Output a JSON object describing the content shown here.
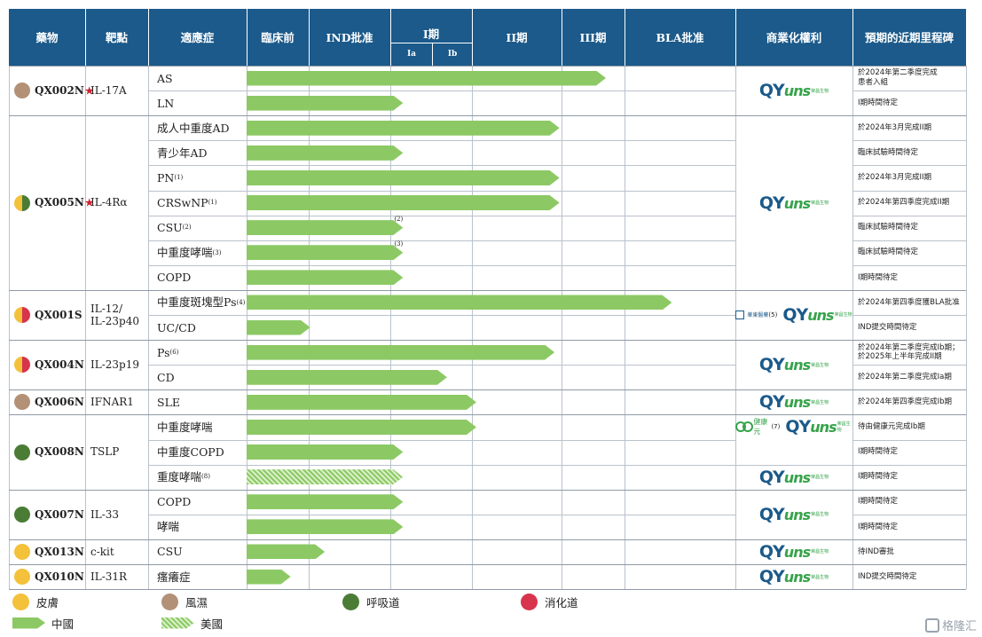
{
  "header": {
    "drug": "藥物",
    "target": "靶點",
    "indication": "適應症",
    "preclinical": "臨床前",
    "ind_approval": "IND批准",
    "phase1": "I期",
    "phase1a": "Ia",
    "phase1b": "Ib",
    "phase2": "II期",
    "phase3": "III期",
    "bla_approval": "BLA批准",
    "commercial_rights": "商業化權利",
    "milestones": "預期的近期里程碑"
  },
  "programs": [
    {
      "drug": "QX002N",
      "star": "★",
      "area": "brown",
      "target": "IL-17A",
      "rows": [
        {
          "indication": "AS",
          "fn": "",
          "stage": 0.735,
          "us": false,
          "milestone": "於2024年第二季度完成\n患者入組"
        },
        {
          "indication": "LN",
          "fn": "",
          "stage": 0.32,
          "us": false,
          "milestone": "I期時間待定"
        }
      ],
      "rights": [
        "qyuns"
      ]
    },
    {
      "drug": "QX005N",
      "star": "★",
      "area": "yg",
      "target": "IL-4Rα",
      "rows": [
        {
          "indication": "成人中重度AD",
          "fn": "",
          "stage": 0.64,
          "us": false,
          "milestone": "於2024年3月完成II期"
        },
        {
          "indication": "青少年AD",
          "fn": "",
          "stage": 0.32,
          "us": false,
          "milestone": "臨床試驗時間待定"
        },
        {
          "indication": "PN",
          "fn": "(1)",
          "stage": 0.64,
          "us": false,
          "milestone": "於2024年3月完成II期"
        },
        {
          "indication": "CRSwNP",
          "fn": "(1)",
          "stage": 0.64,
          "us": false,
          "milestone": "於2024年第四季度完成II期"
        },
        {
          "indication": "CSU",
          "fn": "(2)",
          "stage": 0.32,
          "us": false,
          "arrow_fn": "(2)",
          "milestone": "臨床試驗時間待定"
        },
        {
          "indication": "中重度哮喘",
          "fn": "(3)",
          "stage": 0.32,
          "us": false,
          "arrow_fn": "(3)",
          "milestone": "臨床試驗時間待定"
        },
        {
          "indication": "COPD",
          "fn": "",
          "stage": 0.32,
          "us": false,
          "milestone": "I期時間待定"
        }
      ],
      "rights": [
        "qyuns"
      ]
    },
    {
      "drug": "QX001S",
      "star": "",
      "area": "yr",
      "target": "IL-12/\nIL-23p40",
      "rows": [
        {
          "indication": "中重度斑塊型Ps",
          "fn": "(4)",
          "stage": 0.87,
          "us": false,
          "milestone": "於2024年第四季度獲BLA批准"
        },
        {
          "indication": "UC/CD",
          "fn": "",
          "stage": 0.13,
          "us": false,
          "milestone": "IND提交時間待定"
        }
      ],
      "rights": [
        "partner-hd",
        "qyuns"
      ],
      "partner_fn": "(5)",
      "partner_name": "華東醫藥"
    },
    {
      "drug": "QX004N",
      "star": "",
      "area": "yr",
      "target": "IL-23p19",
      "rows": [
        {
          "indication": "Ps",
          "fn": "(6)",
          "stage": 0.63,
          "us": false,
          "milestone": "於2024年第二季度完成Ib期；\n於2025年上半年完成II期"
        },
        {
          "indication": "CD",
          "fn": "",
          "stage": 0.41,
          "us": false,
          "milestone": "於2024年第二季度完成Ia期"
        }
      ],
      "rights": [
        "qyuns"
      ]
    },
    {
      "drug": "QX006N",
      "star": "",
      "area": "brown",
      "target": "IFNAR1",
      "rows": [
        {
          "indication": "SLE",
          "fn": "",
          "stage": 0.47,
          "us": false,
          "milestone": "於2024年第四季度完成Ib期"
        }
      ],
      "rights": [
        "qyuns"
      ]
    },
    {
      "drug": "QX008N",
      "star": "",
      "area": "green",
      "target": "TSLP",
      "rows": [
        {
          "indication": "中重度哮喘",
          "fn": "",
          "stage": 0.47,
          "us": false,
          "milestone": "待由健康元完成Ib期"
        },
        {
          "indication": "中重度COPD",
          "fn": "",
          "stage": 0.32,
          "us": false,
          "milestone": "I期時間待定"
        },
        {
          "indication": "重度哮喘",
          "fn": "(8)",
          "stage": 0.32,
          "us": true,
          "milestone": "I期時間待定"
        }
      ],
      "rights": [
        "qyuns"
      ],
      "partner_fn": "(7)",
      "partner_name": "健康元",
      "partner_en": "Joincare"
    },
    {
      "drug": "QX007N",
      "star": "",
      "area": "green",
      "target": "IL-33",
      "rows": [
        {
          "indication": "COPD",
          "fn": "",
          "stage": 0.32,
          "us": false,
          "milestone": "I期時間待定"
        },
        {
          "indication": "哮喘",
          "fn": "",
          "stage": 0.32,
          "us": false,
          "milestone": "I期時間待定"
        }
      ],
      "rights": [
        "qyuns"
      ]
    },
    {
      "drug": "QX013N",
      "star": "",
      "area": "yellow",
      "target": "c-kit",
      "rows": [
        {
          "indication": "CSU",
          "fn": "",
          "stage": 0.16,
          "us": false,
          "milestone": "待IND審批"
        }
      ],
      "rights": [
        "qyuns"
      ]
    },
    {
      "drug": "QX010N",
      "star": "",
      "area": "yellow",
      "target": "IL-31R",
      "rows": [
        {
          "indication": "瘙癢症",
          "fn": "",
          "stage": 0.09,
          "us": false,
          "milestone": "IND提交時間待定"
        }
      ],
      "rights": [
        "qyuns"
      ]
    }
  ],
  "logo": {
    "main": "QY",
    "accent": "uns",
    "sub": "荣昌生物"
  },
  "legend": [
    {
      "key": "yellow",
      "label": "皮膚"
    },
    {
      "key": "brown",
      "label": "風濕"
    },
    {
      "key": "green",
      "label": "呼吸道"
    },
    {
      "key": "red",
      "label": "消化道"
    },
    {
      "key": "cn",
      "label": "中國"
    },
    {
      "key": "us",
      "label": "美國"
    }
  ],
  "watermark": "格隆汇",
  "colors": {
    "header": "#1b5a8a",
    "arrow": "#8cc964",
    "yellow": "#f3c13a",
    "brown": "#b39177",
    "green": "#4a7c36",
    "red": "#d8344d"
  }
}
